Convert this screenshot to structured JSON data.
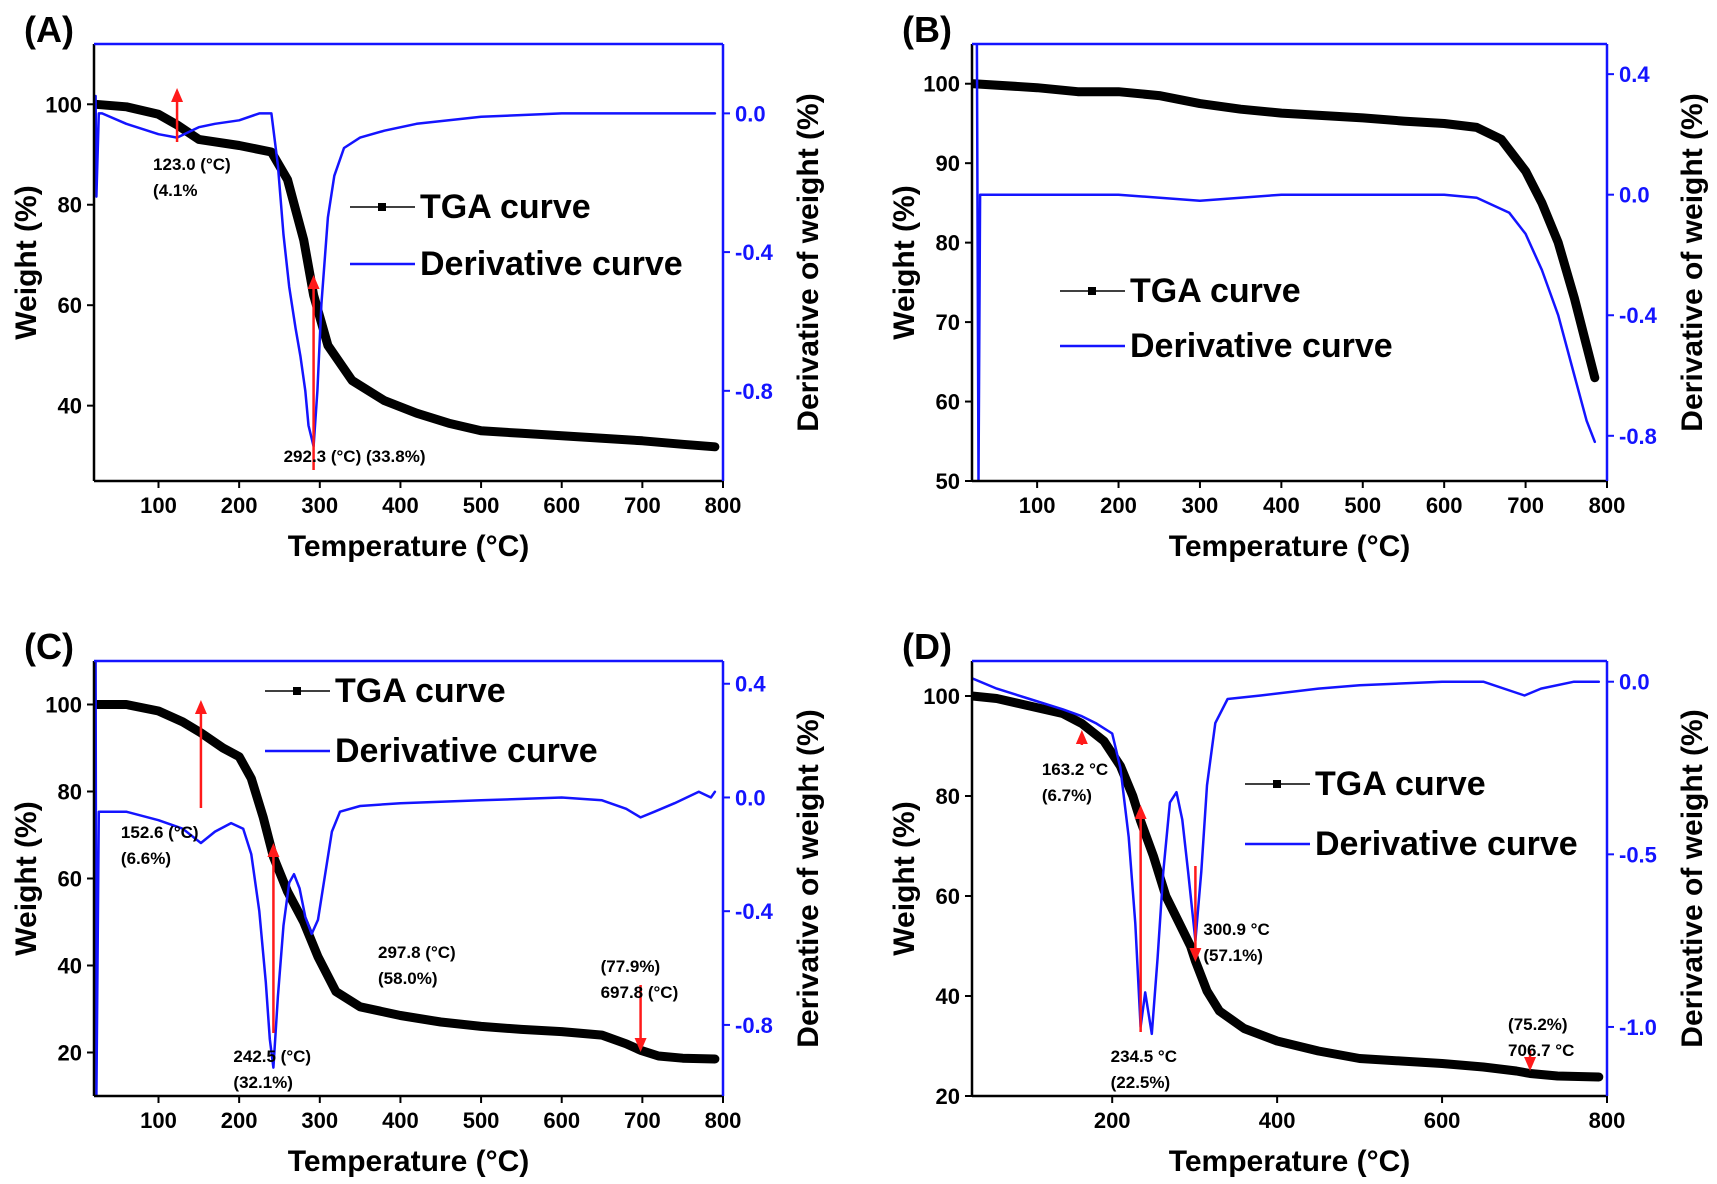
{
  "colors": {
    "tga": "#000000",
    "derivative": "#1414ff",
    "arrow": "#ff1a1a",
    "axis": "#000000",
    "right_axis": "#1414ff"
  },
  "chart_data": [
    {
      "type": "line",
      "panel": "(A)",
      "xlabel": "Temperature (°C)",
      "ylabel": "Weight (%)",
      "y2label": "Derivative of weight (%)",
      "xlim": [
        20,
        800
      ],
      "ylim": [
        25,
        112
      ],
      "y2lim": [
        -1.06,
        0.2
      ],
      "xticks": [
        100,
        200,
        300,
        400,
        500,
        600,
        700,
        800
      ],
      "yticks": [
        40,
        60,
        80,
        100
      ],
      "y2ticks": [
        -0.8,
        -0.4,
        0.0
      ],
      "y2tick_labels": [
        "-0.8",
        "-0.4",
        "0.0"
      ],
      "legend": [
        "TGA curve",
        "Derivative curve"
      ],
      "series": [
        {
          "name": "TGA curve",
          "axis": "left",
          "x": [
            22,
            60,
            100,
            123,
            150,
            200,
            240,
            260,
            280,
            292.3,
            310,
            340,
            380,
            420,
            460,
            500,
            550,
            600,
            650,
            700,
            750,
            790
          ],
          "y": [
            100,
            99.5,
            98,
            95.9,
            93,
            91.8,
            90.5,
            85,
            73,
            62,
            52,
            45,
            41,
            38.5,
            36.5,
            35,
            34.5,
            34,
            33.5,
            33,
            32.3,
            31.8
          ]
        },
        {
          "name": "Derivative curve",
          "axis": "right",
          "x": [
            22,
            23,
            26,
            30,
            60,
            100,
            123,
            150,
            170,
            200,
            225,
            240,
            248,
            255,
            262,
            270,
            276,
            282,
            286,
            292.3,
            297,
            302,
            310,
            318,
            330,
            350,
            380,
            420,
            500,
            600,
            700,
            790
          ],
          "y": [
            0.05,
            -0.24,
            0,
            0,
            -0.03,
            -0.06,
            -0.07,
            -0.04,
            -0.03,
            -0.02,
            0.0,
            0.0,
            -0.15,
            -0.35,
            -0.5,
            -0.62,
            -0.7,
            -0.8,
            -0.9,
            -0.96,
            -0.8,
            -0.55,
            -0.3,
            -0.18,
            -0.1,
            -0.07,
            -0.05,
            -0.03,
            -0.01,
            0.0,
            0.0,
            0.0
          ]
        }
      ],
      "annotations": [
        {
          "x": 123.0,
          "lines": [
            "123.0 (°C)",
            "(4.1%"
          ]
        },
        {
          "x": 292.3,
          "lines": [
            "292.3 (°C)  (33.8%)"
          ]
        }
      ]
    },
    {
      "type": "line",
      "panel": "(B)",
      "xlabel": "Temperature (°C)",
      "ylabel": "Weight (%)",
      "y2label": "Derivative of weight (%)",
      "xlim": [
        20,
        800
      ],
      "ylim": [
        50,
        105
      ],
      "y2lim": [
        -0.95,
        0.5
      ],
      "xticks": [
        100,
        200,
        300,
        400,
        500,
        600,
        700,
        800
      ],
      "yticks": [
        50,
        60,
        70,
        80,
        90,
        100
      ],
      "y2ticks": [
        -0.8,
        -0.4,
        0.0,
        0.4
      ],
      "y2tick_labels": [
        "-0.8",
        "-0.4",
        "0.0",
        "0.4"
      ],
      "legend": [
        "TGA curve",
        "Derivative curve"
      ],
      "series": [
        {
          "name": "TGA curve",
          "axis": "left",
          "x": [
            22,
            100,
            150,
            200,
            250,
            300,
            350,
            400,
            450,
            500,
            550,
            600,
            640,
            670,
            700,
            720,
            740,
            760,
            775,
            785
          ],
          "y": [
            100,
            99.5,
            99,
            99,
            98.5,
            97.5,
            96.8,
            96.3,
            96,
            95.7,
            95.3,
            95,
            94.5,
            93,
            89,
            85,
            80,
            73,
            67,
            63
          ]
        },
        {
          "name": "Derivative curve",
          "axis": "right",
          "x": [
            26,
            28,
            30,
            100,
            200,
            300,
            400,
            500,
            600,
            640,
            680,
            700,
            720,
            740,
            760,
            775,
            785
          ],
          "y": [
            0.5,
            -0.95,
            0.0,
            0.0,
            0.0,
            -0.02,
            0.0,
            0.0,
            0.0,
            -0.01,
            -0.06,
            -0.13,
            -0.25,
            -0.4,
            -0.6,
            -0.75,
            -0.82
          ]
        }
      ],
      "annotations": []
    },
    {
      "type": "line",
      "panel": "(C)",
      "xlabel": "Temperature (°C)",
      "ylabel": "Weight (%)",
      "y2label": "Derivative of weight (%)",
      "xlim": [
        20,
        800
      ],
      "ylim": [
        10,
        110
      ],
      "y2lim": [
        -1.05,
        0.48
      ],
      "xticks": [
        100,
        200,
        300,
        400,
        500,
        600,
        700,
        800
      ],
      "yticks": [
        20,
        40,
        60,
        80,
        100
      ],
      "y2ticks": [
        -0.8,
        -0.4,
        0.0,
        0.4
      ],
      "y2tick_labels": [
        "-0.8",
        "-0.4",
        "0.0",
        "0.4"
      ],
      "legend": [
        "TGA curve",
        "Derivative curve"
      ],
      "series": [
        {
          "name": "TGA curve",
          "axis": "left",
          "x": [
            22,
            60,
            100,
            130,
            152.6,
            180,
            200,
            215,
            230,
            242.5,
            260,
            280,
            297.8,
            320,
            350,
            400,
            450,
            500,
            550,
            600,
            650,
            680,
            697.8,
            720,
            750,
            790
          ],
          "y": [
            100,
            100,
            98.5,
            96,
            93.5,
            90,
            88,
            83,
            74,
            65,
            57,
            50,
            42,
            34,
            30.5,
            28.5,
            27,
            26,
            25.3,
            24.8,
            24,
            22,
            20.5,
            19.2,
            18.7,
            18.5
          ]
        },
        {
          "name": "Derivative curve",
          "axis": "right",
          "x": [
            22,
            23,
            26,
            30,
            60,
            100,
            130,
            152.6,
            170,
            190,
            205,
            215,
            225,
            233,
            238,
            242.5,
            248,
            255,
            262,
            268,
            275,
            282,
            290,
            297.8,
            305,
            315,
            325,
            350,
            400,
            500,
            600,
            650,
            680,
            697.8,
            715,
            740,
            770,
            785,
            790
          ],
          "y": [
            0.48,
            -1.05,
            -0.05,
            -0.05,
            -0.05,
            -0.08,
            -0.11,
            -0.16,
            -0.12,
            -0.09,
            -0.11,
            -0.2,
            -0.4,
            -0.65,
            -0.85,
            -0.95,
            -0.7,
            -0.45,
            -0.3,
            -0.27,
            -0.32,
            -0.42,
            -0.48,
            -0.43,
            -0.3,
            -0.12,
            -0.05,
            -0.03,
            -0.02,
            -0.01,
            0.0,
            -0.01,
            -0.04,
            -0.07,
            -0.05,
            -0.02,
            0.02,
            0.0,
            0.02
          ]
        }
      ],
      "annotations": [
        {
          "x": 152.6,
          "lines": [
            "152.6 (°C)",
            "(6.6%)"
          ]
        },
        {
          "x": 242.5,
          "lines": [
            "242.5 (°C)",
            "(32.1%)"
          ]
        },
        {
          "x": 297.8,
          "lines": [
            "297.8 (°C)",
            "(58.0%)"
          ]
        },
        {
          "x": 697.8,
          "lines": [
            "(77.9%)",
            "697.8 (°C)"
          ]
        }
      ]
    },
    {
      "type": "line",
      "panel": "(D)",
      "xlabel": "Temperature (°C)",
      "ylabel": "Weight (%)",
      "y2label": "Derivative of weight (%)",
      "xlim": [
        30,
        800
      ],
      "ylim": [
        20,
        107
      ],
      "y2lim": [
        -1.2,
        0.06
      ],
      "xticks": [
        200,
        400,
        600,
        800
      ],
      "yticks": [
        20,
        40,
        60,
        80,
        100
      ],
      "y2ticks": [
        -1.0,
        -0.5,
        0.0
      ],
      "y2tick_labels": [
        "-1.0",
        "-0.5",
        "0.0"
      ],
      "legend": [
        "TGA curve",
        "Derivative curve"
      ],
      "series": [
        {
          "name": "TGA curve",
          "axis": "left",
          "x": [
            30,
            60,
            100,
            140,
            163.2,
            190,
            210,
            225,
            234.5,
            250,
            265,
            280,
            295,
            300.9,
            315,
            330,
            360,
            400,
            450,
            500,
            550,
            600,
            650,
            690,
            706.7,
            740,
            790
          ],
          "y": [
            100,
            99.5,
            98,
            96.5,
            94.5,
            91,
            86,
            80,
            75,
            68,
            60,
            55,
            50,
            47,
            41,
            37,
            33.5,
            31,
            29,
            27.5,
            27,
            26.5,
            25.8,
            25,
            24.5,
            24,
            23.8
          ]
        },
        {
          "name": "Derivative curve",
          "axis": "right",
          "x": [
            30,
            60,
            100,
            140,
            163.2,
            180,
            200,
            210,
            220,
            228,
            234.5,
            240,
            248,
            255,
            262,
            270,
            278,
            285,
            292,
            300.9,
            308,
            315,
            325,
            340,
            380,
            450,
            500,
            600,
            650,
            700,
            720,
            760,
            790
          ],
          "y": [
            0.01,
            -0.02,
            -0.05,
            -0.08,
            -0.1,
            -0.12,
            -0.15,
            -0.25,
            -0.45,
            -0.7,
            -1.0,
            -0.9,
            -1.02,
            -0.8,
            -0.55,
            -0.35,
            -0.32,
            -0.4,
            -0.55,
            -0.75,
            -0.55,
            -0.3,
            -0.12,
            -0.05,
            -0.04,
            -0.02,
            -0.01,
            0.0,
            0.0,
            -0.04,
            -0.02,
            0.0,
            0.0
          ]
        }
      ],
      "annotations": [
        {
          "x": 163.2,
          "lines": [
            "163.2 °C",
            "(6.7%)"
          ]
        },
        {
          "x": 234.5,
          "lines": [
            "234.5 °C",
            "(22.5%)"
          ]
        },
        {
          "x": 300.9,
          "lines": [
            "300.9 °C",
            "(57.1%)"
          ]
        },
        {
          "x": 706.7,
          "lines": [
            "(75.2%)",
            "706.7 °C"
          ]
        }
      ]
    }
  ]
}
